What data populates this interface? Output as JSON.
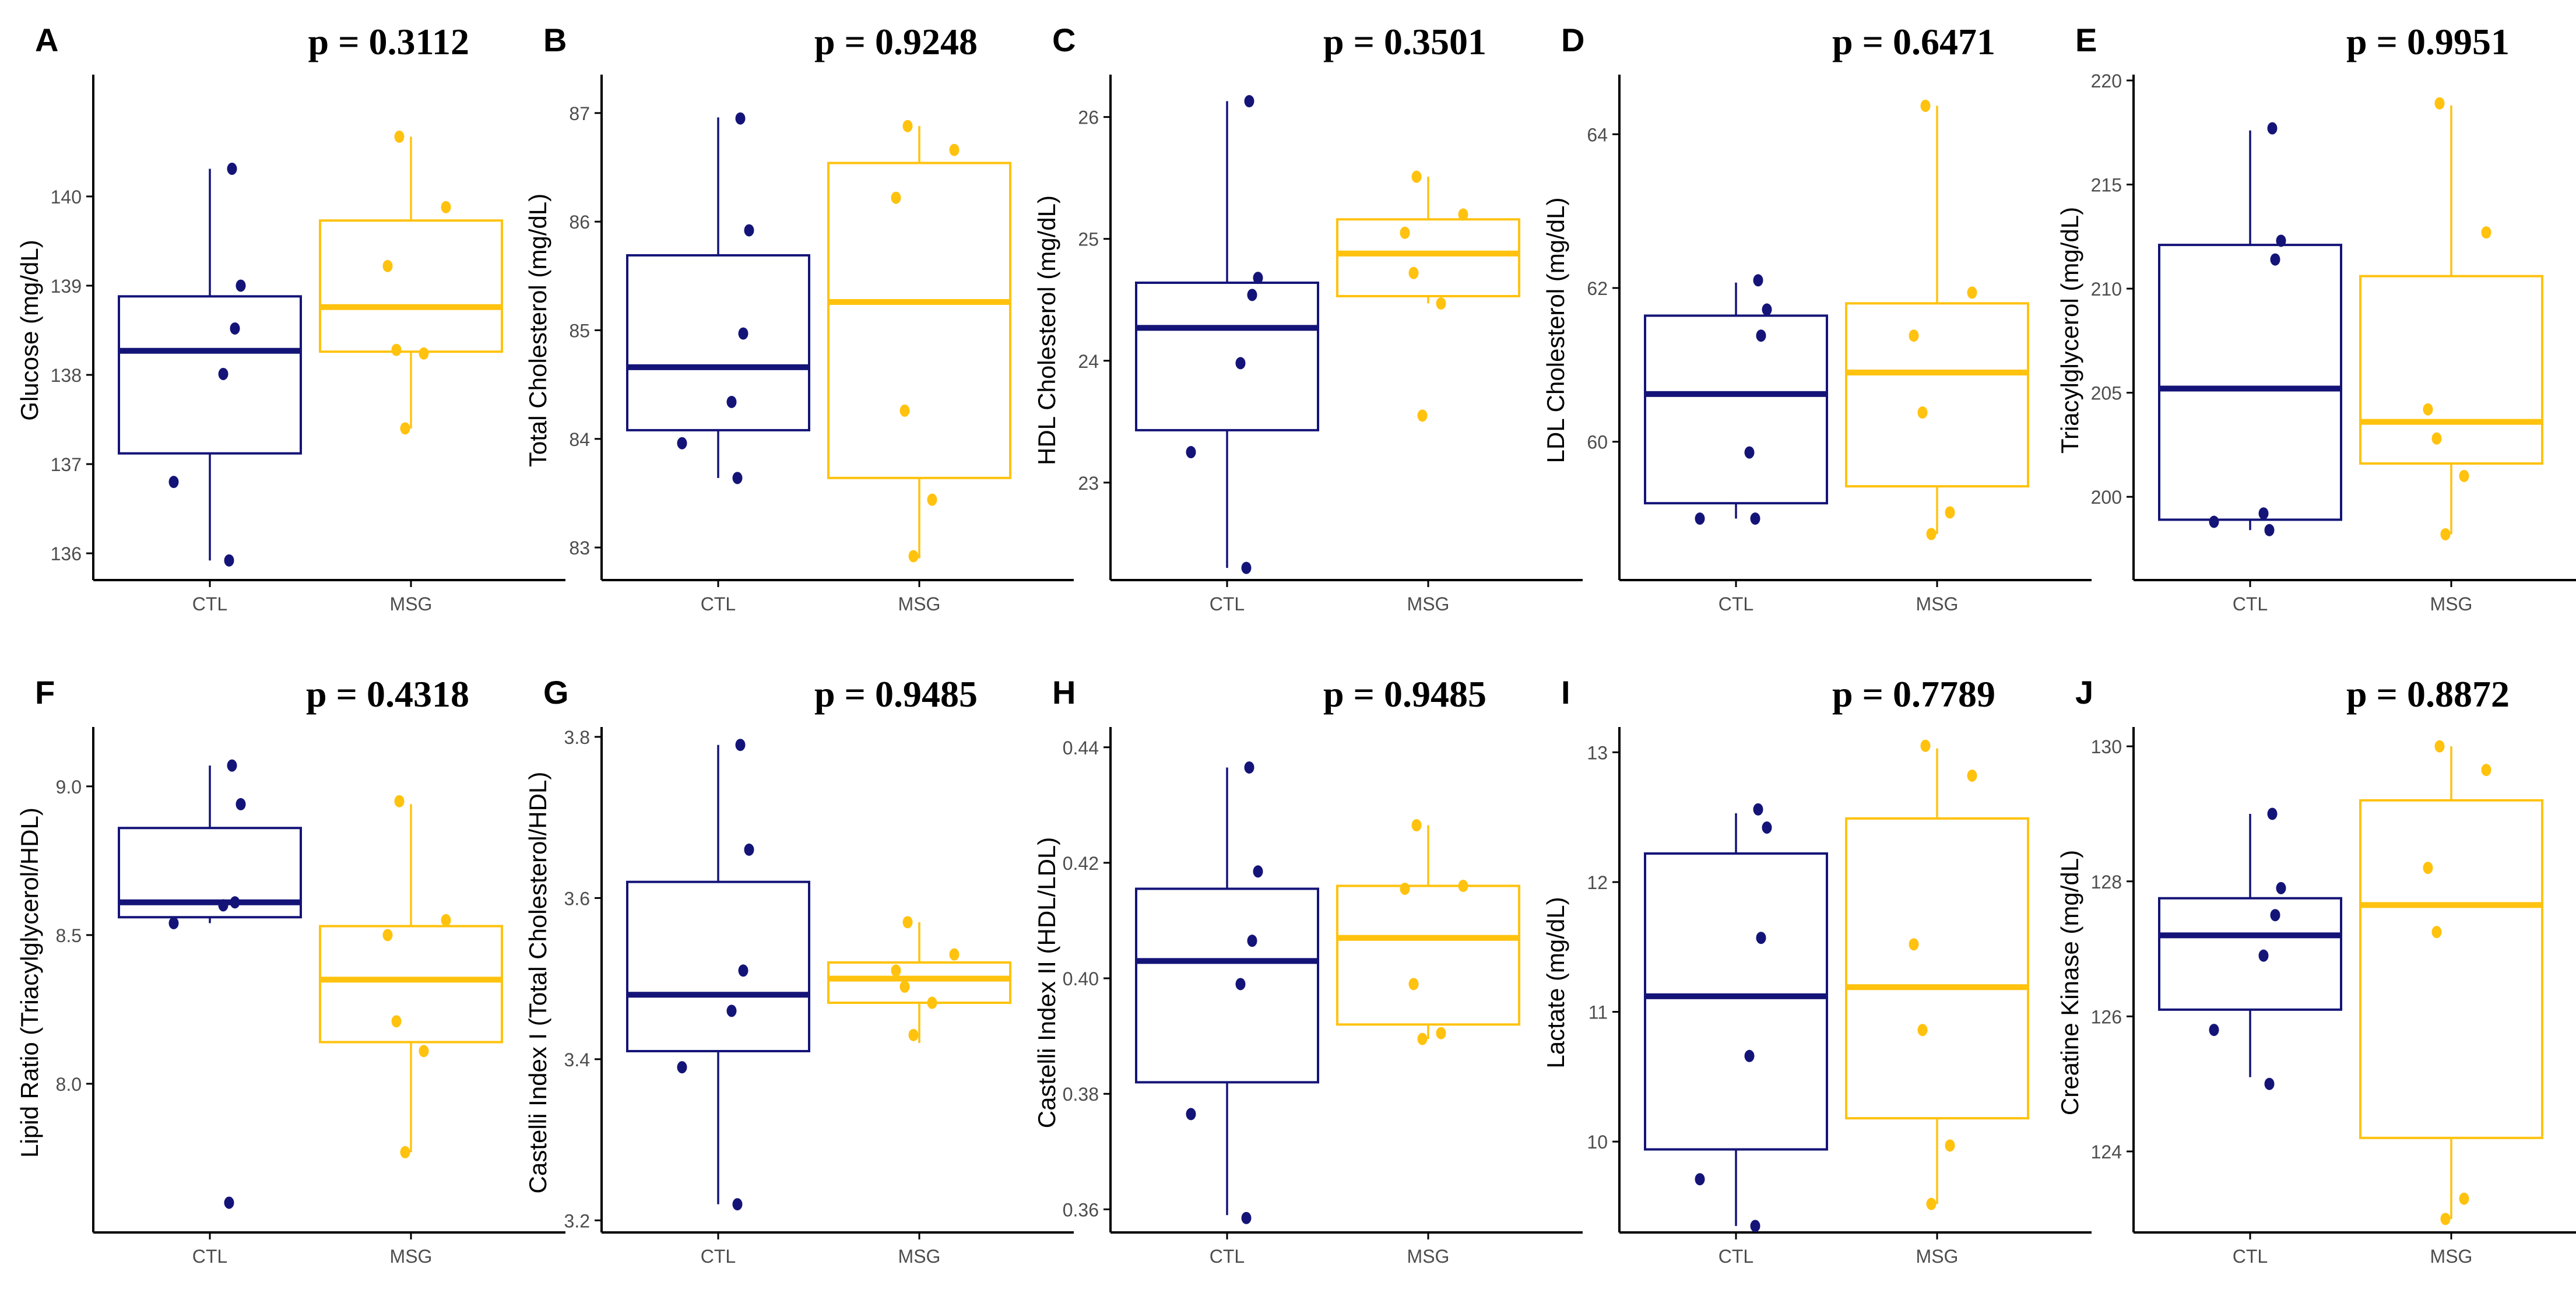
{
  "figure": {
    "groups": [
      "CTL",
      "MSG"
    ]
  },
  "colors": {
    "CTL": "#141478",
    "MSG": "#FFC20E",
    "axis": "#000000",
    "tick_text": "#4d4d4d"
  },
  "chart_data": [
    {
      "type": "boxplot",
      "panel": "A",
      "p_value": "p = 0.3112",
      "ylabel": "Glucose (mg/dL)",
      "ylim": [
        135.7,
        141.3
      ],
      "yticks": [
        "136",
        "137",
        "138",
        "139",
        "140"
      ],
      "categories": [
        "CTL",
        "MSG"
      ],
      "boxes": {
        "CTL": {
          "whisker_low": 135.92,
          "q1": 137.12,
          "median": 138.27,
          "q3": 138.88,
          "whisker_high": 140.31
        },
        "MSG": {
          "whisker_low": 137.4,
          "q1": 138.26,
          "median": 138.76,
          "q3": 139.73,
          "whisker_high": 140.67
        }
      },
      "points": {
        "CTL": [
          140.31,
          139.0,
          138.52,
          138.01,
          136.8,
          135.92
        ],
        "MSG": [
          140.67,
          139.88,
          139.22,
          138.28,
          138.24,
          137.4
        ]
      }
    },
    {
      "type": "boxplot",
      "panel": "B",
      "p_value": "p = 0.9248",
      "ylabel": "Total Cholesterol (mg/dL)",
      "ylim": [
        82.7,
        87.3
      ],
      "yticks": [
        "83",
        "84",
        "85",
        "86",
        "87"
      ],
      "categories": [
        "CTL",
        "MSG"
      ],
      "boxes": {
        "CTL": {
          "whisker_low": 83.64,
          "q1": 84.08,
          "median": 84.66,
          "q3": 85.69,
          "whisker_high": 86.96
        },
        "MSG": {
          "whisker_low": 82.9,
          "q1": 83.64,
          "median": 85.26,
          "q3": 86.54,
          "whisker_high": 86.88
        }
      },
      "points": {
        "CTL": [
          86.95,
          85.92,
          84.97,
          84.34,
          83.96,
          83.64
        ],
        "MSG": [
          86.88,
          86.66,
          86.22,
          84.26,
          83.44,
          82.92
        ]
      }
    },
    {
      "type": "boxplot",
      "panel": "C",
      "p_value": "p = 0.3501",
      "ylabel": "HDL Cholesterol (mg/dL)",
      "ylim": [
        22.2,
        26.3
      ],
      "yticks": [
        "23",
        "24",
        "25",
        "26"
      ],
      "categories": [
        "CTL",
        "MSG"
      ],
      "boxes": {
        "CTL": {
          "whisker_low": 22.3,
          "q1": 23.43,
          "median": 24.27,
          "q3": 24.64,
          "whisker_high": 26.13
        },
        "MSG": {
          "whisker_low": 24.47,
          "q1": 24.53,
          "median": 24.88,
          "q3": 25.16,
          "whisker_high": 25.51
        }
      },
      "points": {
        "CTL": [
          26.13,
          24.68,
          24.54,
          23.98,
          23.25,
          22.3
        ],
        "MSG": [
          25.51,
          25.2,
          25.05,
          24.72,
          24.47,
          23.55
        ]
      }
    },
    {
      "type": "boxplot",
      "panel": "D",
      "p_value": "p = 0.6471",
      "ylabel": "LDL Cholesterol (mg/dL)",
      "ylim": [
        58.2,
        64.7
      ],
      "yticks": [
        "60",
        "62",
        "64"
      ],
      "categories": [
        "CTL",
        "MSG"
      ],
      "boxes": {
        "CTL": {
          "whisker_low": 59.0,
          "q1": 59.2,
          "median": 60.62,
          "q3": 61.64,
          "whisker_high": 62.07
        },
        "MSG": {
          "whisker_low": 58.8,
          "q1": 59.42,
          "median": 60.9,
          "q3": 61.8,
          "whisker_high": 64.37
        }
      },
      "points": {
        "CTL": [
          62.1,
          61.72,
          61.38,
          59.86,
          59.0,
          59.0
        ],
        "MSG": [
          64.37,
          61.94,
          61.38,
          60.38,
          59.08,
          58.8
        ]
      }
    },
    {
      "type": "boxplot",
      "panel": "E",
      "p_value": "p = 0.9951",
      "ylabel": "Triacylglycerol (mg/dL)",
      "ylim": [
        196.0,
        220.0
      ],
      "yticks": [
        "200",
        "205",
        "210",
        "215",
        "220"
      ],
      "categories": [
        "CTL",
        "MSG"
      ],
      "boxes": {
        "CTL": {
          "whisker_low": 198.4,
          "q1": 198.9,
          "median": 205.2,
          "q3": 212.1,
          "whisker_high": 217.6
        },
        "MSG": {
          "whisker_low": 198.2,
          "q1": 201.6,
          "median": 203.6,
          "q3": 210.6,
          "whisker_high": 218.8
        }
      },
      "points": {
        "CTL": [
          217.7,
          212.3,
          211.4,
          199.2,
          198.8,
          198.4
        ],
        "MSG": [
          218.9,
          212.7,
          204.2,
          202.8,
          201.0,
          198.2
        ]
      }
    },
    {
      "type": "boxplot",
      "panel": "F",
      "p_value": "p = 0.4318",
      "ylabel": "Lipid Ratio (Triacylglycerol/HDL)",
      "ylim": [
        7.5,
        9.18
      ],
      "yticks": [
        "8.0",
        "8.5",
        "9.0"
      ],
      "categories": [
        "CTL",
        "MSG"
      ],
      "boxes": {
        "CTL": {
          "whisker_low": 8.54,
          "q1": 8.56,
          "median": 8.61,
          "q3": 8.86,
          "whisker_high": 9.07
        },
        "MSG": {
          "whisker_low": 7.77,
          "q1": 8.14,
          "median": 8.35,
          "q3": 8.53,
          "whisker_high": 8.94
        }
      },
      "points": {
        "CTL": [
          9.07,
          8.94,
          8.61,
          8.6,
          8.54,
          7.6
        ],
        "MSG": [
          8.95,
          8.55,
          8.5,
          8.21,
          8.11,
          7.77
        ]
      }
    },
    {
      "type": "boxplot",
      "panel": "G",
      "p_value": "p = 0.9485",
      "ylabel": "Castelli Index I (Total Cholesterol/HDL)",
      "ylim": [
        3.185,
        3.805
      ],
      "yticks": [
        "3.2",
        "3.4",
        "3.6",
        "3.8"
      ],
      "categories": [
        "CTL",
        "MSG"
      ],
      "boxes": {
        "CTL": {
          "whisker_low": 3.22,
          "q1": 3.41,
          "median": 3.48,
          "q3": 3.62,
          "whisker_high": 3.79
        },
        "MSG": {
          "whisker_low": 3.42,
          "q1": 3.47,
          "median": 3.5,
          "q3": 3.52,
          "whisker_high": 3.57
        }
      },
      "points": {
        "CTL": [
          3.79,
          3.66,
          3.51,
          3.46,
          3.39,
          3.22
        ],
        "MSG": [
          3.57,
          3.53,
          3.51,
          3.49,
          3.47,
          3.43
        ]
      }
    },
    {
      "type": "boxplot",
      "panel": "H",
      "p_value": "p = 0.9485",
      "ylabel": "Castelli Index II (HDL/LDL)",
      "ylim": [
        0.356,
        0.4425
      ],
      "yticks": [
        "0.36",
        "0.38",
        "0.40",
        "0.42",
        "0.44"
      ],
      "categories": [
        "CTL",
        "MSG"
      ],
      "boxes": {
        "CTL": {
          "whisker_low": 0.359,
          "q1": 0.382,
          "median": 0.403,
          "q3": 0.4155,
          "whisker_high": 0.4365
        },
        "MSG": {
          "whisker_low": 0.3895,
          "q1": 0.392,
          "median": 0.407,
          "q3": 0.416,
          "whisker_high": 0.4265
        }
      },
      "points": {
        "CTL": [
          0.4365,
          0.4185,
          0.4065,
          0.399,
          0.3765,
          0.3585
        ],
        "MSG": [
          0.4265,
          0.416,
          0.4155,
          0.399,
          0.3905,
          0.3895
        ]
      }
    },
    {
      "type": "boxplot",
      "panel": "I",
      "p_value": "p = 0.7789",
      "ylabel": "Lactate (mg/dL)",
      "ylim": [
        9.3,
        13.15
      ],
      "yticks": [
        "10",
        "11",
        "12",
        "13"
      ],
      "categories": [
        "CTL",
        "MSG"
      ],
      "boxes": {
        "CTL": {
          "whisker_low": 9.35,
          "q1": 9.94,
          "median": 11.12,
          "q3": 12.22,
          "whisker_high": 12.53
        },
        "MSG": {
          "whisker_low": 9.52,
          "q1": 10.18,
          "median": 11.19,
          "q3": 12.49,
          "whisker_high": 13.03
        }
      },
      "points": {
        "CTL": [
          12.56,
          12.42,
          11.57,
          10.66,
          9.71,
          9.35
        ],
        "MSG": [
          13.05,
          12.82,
          11.52,
          10.86,
          9.97,
          9.52
        ]
      }
    },
    {
      "type": "boxplot",
      "panel": "J",
      "p_value": "p = 0.8872",
      "ylabel": "Creatine Kinase (mg/dL)",
      "ylim": [
        122.8,
        130.2
      ],
      "yticks": [
        "124",
        "126",
        "128",
        "130"
      ],
      "categories": [
        "CTL",
        "MSG"
      ],
      "boxes": {
        "CTL": {
          "whisker_low": 125.1,
          "q1": 126.1,
          "median": 127.2,
          "q3": 127.75,
          "whisker_high": 129.0
        },
        "MSG": {
          "whisker_low": 123.0,
          "q1": 124.2,
          "median": 127.65,
          "q3": 129.2,
          "whisker_high": 130.0
        }
      },
      "points": {
        "CTL": [
          129.0,
          127.9,
          127.5,
          126.9,
          125.8,
          125.0
        ],
        "MSG": [
          130.0,
          129.65,
          128.2,
          127.25,
          123.3,
          123.0
        ]
      }
    }
  ]
}
